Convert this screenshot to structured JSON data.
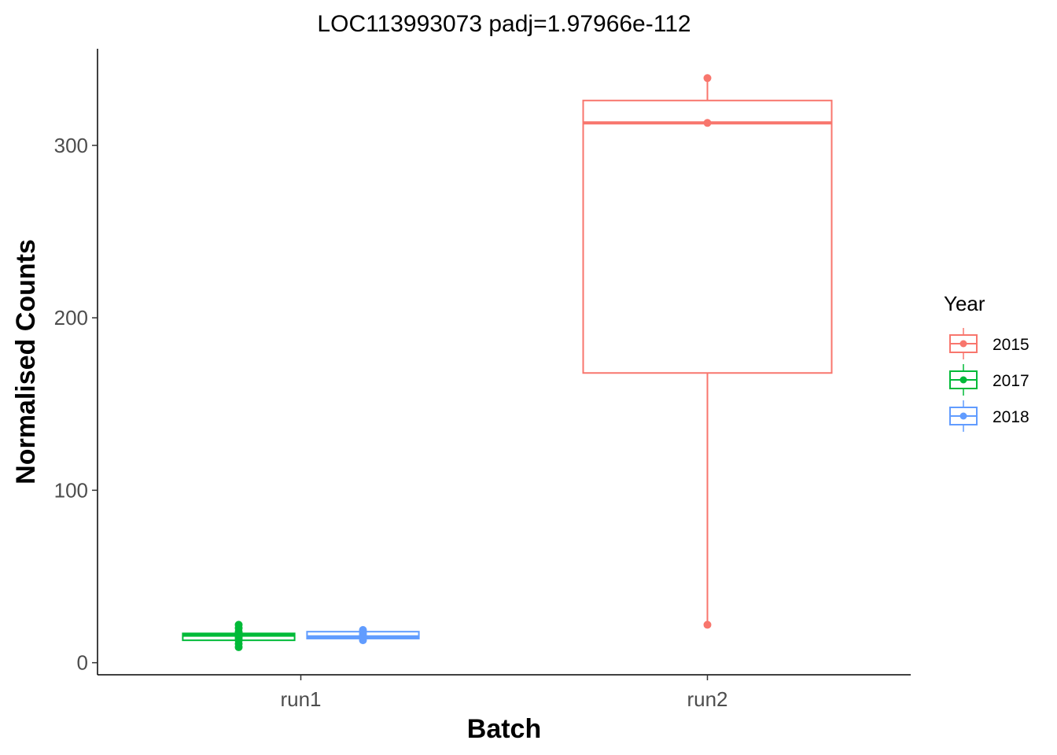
{
  "chart_data": {
    "type": "boxplot",
    "title": "LOC113993073 padj=1.97966e-112",
    "xlabel": "Batch",
    "ylabel": "Normalised Counts",
    "categories": [
      "run1",
      "run2"
    ],
    "ylim": [
      -7,
      356
    ],
    "yticks": [
      0,
      100,
      200,
      300
    ],
    "grid": false,
    "legend": {
      "title": "Year",
      "position": "right"
    },
    "series": [
      {
        "name": "2015",
        "color": "#F8766D",
        "boxes": [
          {
            "category": "run2",
            "min": 22,
            "q1": 168,
            "median": 313,
            "q3": 326,
            "max": 339,
            "points": [
              22,
              313,
              339
            ]
          }
        ]
      },
      {
        "name": "2017",
        "color": "#00BA38",
        "boxes": [
          {
            "category": "run1",
            "min": 9,
            "q1": 13,
            "median": 16,
            "q3": 17,
            "max": 22,
            "points": [
              9,
              11,
              13,
              14,
              15,
              16,
              17,
              18,
              20,
              22
            ]
          }
        ]
      },
      {
        "name": "2018",
        "color": "#619CFF",
        "boxes": [
          {
            "category": "run1",
            "min": 13,
            "q1": 14,
            "median": 15,
            "q3": 18,
            "max": 19,
            "points": [
              13,
              14,
              15,
              16,
              17,
              18,
              19
            ]
          }
        ]
      }
    ]
  }
}
